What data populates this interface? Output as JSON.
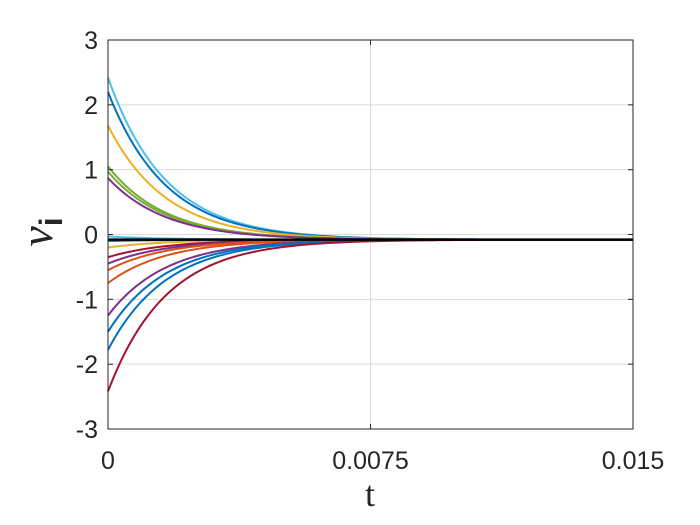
{
  "chart_data": {
    "type": "line",
    "title": "",
    "xlabel": "t",
    "ylabel": "ν",
    "ylabel_subscript": "i",
    "xlim": [
      0,
      0.015
    ],
    "ylim": [
      -3,
      3
    ],
    "xticks": [
      0,
      0.0075,
      0.015
    ],
    "xtick_labels": [
      "0",
      "0.0075",
      "0.015"
    ],
    "yticks": [
      -3,
      -2,
      -1,
      0,
      1,
      2,
      3
    ],
    "ytick_labels": [
      "-3",
      "-2",
      "-1",
      "0",
      "1",
      "2",
      "3"
    ],
    "grid": true,
    "legend": "none",
    "decay_constant": 0.00165,
    "t_end": 0.015,
    "series": [
      {
        "initial": 2.42,
        "final": -0.08,
        "color": "#4dbeee"
      },
      {
        "initial": 2.2,
        "final": -0.08,
        "color": "#0072bd"
      },
      {
        "initial": 1.68,
        "final": -0.08,
        "color": "#edb120"
      },
      {
        "initial": 1.05,
        "final": -0.08,
        "color": "#77ac30"
      },
      {
        "initial": 0.97,
        "final": -0.08,
        "color": "#77ac30"
      },
      {
        "initial": 0.87,
        "final": -0.08,
        "color": "#7e2f8e"
      },
      {
        "initial": -0.03,
        "final": -0.08,
        "color": "#4dbeee"
      },
      {
        "initial": -0.1,
        "final": -0.08,
        "color": "#0072bd"
      },
      {
        "initial": -0.2,
        "final": -0.08,
        "color": "#edb120"
      },
      {
        "initial": -0.35,
        "final": -0.08,
        "color": "#a2142f"
      },
      {
        "initial": -0.45,
        "final": -0.08,
        "color": "#7e2f8e"
      },
      {
        "initial": -0.55,
        "final": -0.08,
        "color": "#d95319"
      },
      {
        "initial": -0.75,
        "final": -0.08,
        "color": "#d95319"
      },
      {
        "initial": -1.25,
        "final": -0.08,
        "color": "#7e2f8e"
      },
      {
        "initial": -1.5,
        "final": -0.08,
        "color": "#0072bd"
      },
      {
        "initial": -1.78,
        "final": -0.08,
        "color": "#0072bd"
      },
      {
        "initial": -2.42,
        "final": -0.08,
        "color": "#a2142f"
      }
    ],
    "consensus_line": {
      "value": -0.08,
      "color": "#000000"
    }
  }
}
